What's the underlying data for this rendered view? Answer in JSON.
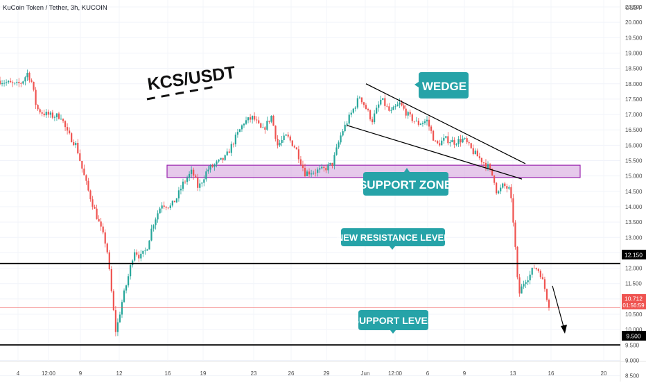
{
  "header": {
    "symbol_title": "KuCoin Token / Tether, 3h, KUCOIN",
    "currency": "USDT"
  },
  "annotations": {
    "pair_label": "KCS/USDT",
    "wedge_label": "WEDGE",
    "support_zone_label": "SUPPORT ZONE",
    "new_resistance_label": "NEW RESISTANCE LEVEL",
    "support_level_label": "SUPPORT LEVEL"
  },
  "badges": {
    "resistance_price": "12.150",
    "current_price": "10.712",
    "countdown": "01:56:59",
    "support_price": "9.500"
  },
  "colors": {
    "up": "#26a69a",
    "down": "#ef5350",
    "zone_fill": "#ce93d8",
    "zone_stroke": "#9c27b0",
    "callout": "#26a3a8",
    "level_line": "#000000"
  },
  "chart_data": {
    "type": "candlestick",
    "title": "KuCoin Token / Tether, 3h, KUCOIN",
    "y_unit": "USDT",
    "ylim": [
      8.5,
      20.5
    ],
    "y_ticks": [
      "20.500",
      "20.000",
      "19.500",
      "19.000",
      "18.500",
      "18.000",
      "17.500",
      "17.000",
      "16.500",
      "16.000",
      "15.500",
      "15.000",
      "14.500",
      "14.000",
      "13.500",
      "13.000",
      "12.500",
      "12.000",
      "11.500",
      "11.000",
      "10.500",
      "10.000",
      "9.500",
      "9.000",
      "8.500"
    ],
    "x_ticks": [
      "4",
      "12:00",
      "9",
      "12",
      "16",
      "19",
      "23",
      "26",
      "29",
      "Jun",
      "12:00",
      "6",
      "9",
      "13",
      "16",
      "20"
    ],
    "grid": true,
    "horizontal_levels": [
      {
        "label": "NEW RESISTANCE LEVEL",
        "price": 12.15
      },
      {
        "label": "SUPPORT LEVEL",
        "price": 9.5
      }
    ],
    "current_price": 10.712,
    "support_zone": {
      "label": "SUPPORT ZONE",
      "from": 14.95,
      "to": 15.35
    },
    "wedge": {
      "label": "WEDGE",
      "upper_line": {
        "from": 18.0,
        "to": 15.4
      },
      "lower_line": {
        "from": 16.65,
        "to": 14.9
      }
    },
    "price_path": [
      {
        "t": 0,
        "close": 18.1
      },
      {
        "t": 0.026,
        "close": 17.95
      },
      {
        "t": 0.036,
        "close": 18.05
      },
      {
        "t": 0.045,
        "close": 18.35
      },
      {
        "t": 0.052,
        "close": 18.05
      },
      {
        "t": 0.06,
        "close": 17.2
      },
      {
        "t": 0.07,
        "close": 17.05
      },
      {
        "t": 0.085,
        "close": 16.95
      },
      {
        "t": 0.1,
        "close": 16.95
      },
      {
        "t": 0.11,
        "close": 16.4
      },
      {
        "t": 0.125,
        "close": 16.0
      },
      {
        "t": 0.135,
        "close": 15.2
      },
      {
        "t": 0.145,
        "close": 14.5
      },
      {
        "t": 0.16,
        "close": 13.6
      },
      {
        "t": 0.175,
        "close": 12.7
      },
      {
        "t": 0.185,
        "close": 10.8
      },
      {
        "t": 0.19,
        "close": 9.9
      },
      {
        "t": 0.2,
        "close": 10.9
      },
      {
        "t": 0.21,
        "close": 11.7
      },
      {
        "t": 0.22,
        "close": 12.6
      },
      {
        "t": 0.23,
        "close": 12.35
      },
      {
        "t": 0.24,
        "close": 12.6
      },
      {
        "t": 0.25,
        "close": 13.4
      },
      {
        "t": 0.265,
        "close": 14.1
      },
      {
        "t": 0.28,
        "close": 14.0
      },
      {
        "t": 0.29,
        "close": 14.3
      },
      {
        "t": 0.3,
        "close": 14.75
      },
      {
        "t": 0.315,
        "close": 15.15
      },
      {
        "t": 0.325,
        "close": 14.6
      },
      {
        "t": 0.34,
        "close": 15.2
      },
      {
        "t": 0.355,
        "close": 15.4
      },
      {
        "t": 0.37,
        "close": 15.6
      },
      {
        "t": 0.385,
        "close": 16.2
      },
      {
        "t": 0.4,
        "close": 16.75
      },
      {
        "t": 0.415,
        "close": 16.9
      },
      {
        "t": 0.43,
        "close": 16.45
      },
      {
        "t": 0.445,
        "close": 16.95
      },
      {
        "t": 0.455,
        "close": 16.0
      },
      {
        "t": 0.47,
        "close": 16.3
      },
      {
        "t": 0.485,
        "close": 15.9
      },
      {
        "t": 0.5,
        "close": 15.1
      },
      {
        "t": 0.515,
        "close": 15.15
      },
      {
        "t": 0.53,
        "close": 15.2
      },
      {
        "t": 0.545,
        "close": 15.4
      },
      {
        "t": 0.56,
        "close": 16.4
      },
      {
        "t": 0.575,
        "close": 17.0
      },
      {
        "t": 0.59,
        "close": 17.6
      },
      {
        "t": 0.6,
        "close": 17.2
      },
      {
        "t": 0.61,
        "close": 16.8
      },
      {
        "t": 0.625,
        "close": 17.5
      },
      {
        "t": 0.64,
        "close": 17.05
      },
      {
        "t": 0.655,
        "close": 17.35
      },
      {
        "t": 0.67,
        "close": 16.95
      },
      {
        "t": 0.685,
        "close": 16.7
      },
      {
        "t": 0.7,
        "close": 16.8
      },
      {
        "t": 0.715,
        "close": 16.0
      },
      {
        "t": 0.73,
        "close": 16.2
      },
      {
        "t": 0.745,
        "close": 16.1
      },
      {
        "t": 0.76,
        "close": 16.2
      },
      {
        "t": 0.775,
        "close": 15.8
      },
      {
        "t": 0.79,
        "close": 15.5
      },
      {
        "t": 0.8,
        "close": 15.3
      },
      {
        "t": 0.81,
        "close": 14.9
      },
      {
        "t": 0.815,
        "close": 14.4
      },
      {
        "t": 0.825,
        "close": 14.7
      },
      {
        "t": 0.835,
        "close": 14.55
      },
      {
        "t": 0.84,
        "close": 13.9
      },
      {
        "t": 0.845,
        "close": 12.6
      },
      {
        "t": 0.85,
        "close": 11.1
      },
      {
        "t": 0.86,
        "close": 11.6
      },
      {
        "t": 0.87,
        "close": 11.8
      },
      {
        "t": 0.875,
        "close": 12.05
      },
      {
        "t": 0.885,
        "close": 11.9
      },
      {
        "t": 0.895,
        "close": 11.2
      },
      {
        "t": 0.9,
        "close": 10.712
      }
    ]
  }
}
